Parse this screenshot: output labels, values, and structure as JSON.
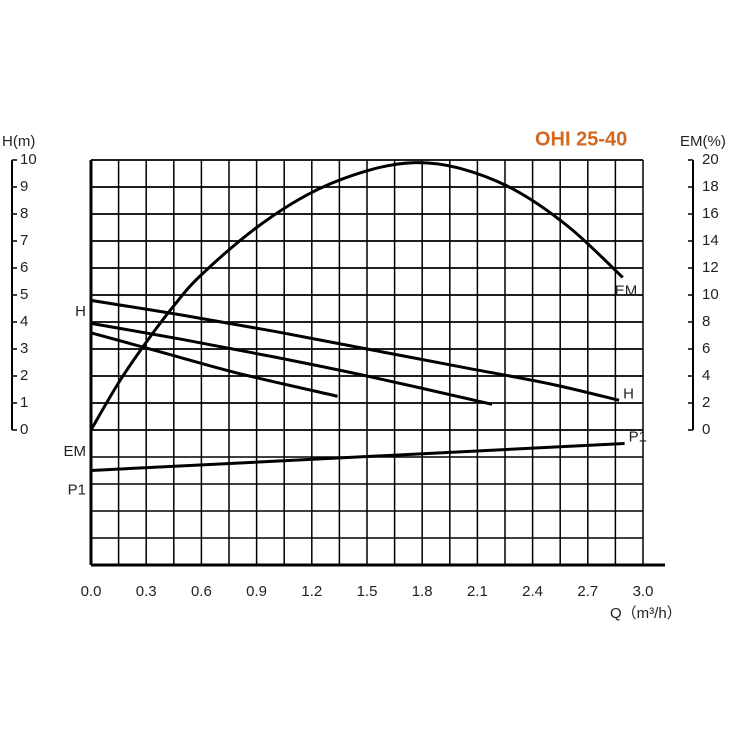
{
  "chart_data": {
    "type": "line",
    "title": "OHI 25-40",
    "y_label": "H(m)",
    "y2_label": "EM(%)",
    "x_label": "Q（m³/h）",
    "xlim": [
      0,
      3
    ],
    "xticks": [
      {
        "value": 0,
        "label": "0.0"
      },
      0.3,
      0.6,
      0.9,
      1.2,
      1.5,
      1.8,
      2.1,
      2.4,
      2.7,
      {
        "value": 3,
        "label": "3.0"
      }
    ],
    "ylim": [
      -5,
      10
    ],
    "yticks": [
      0,
      1,
      2,
      3,
      4,
      5,
      6,
      7,
      8,
      9,
      10
    ],
    "y2lim": [
      -10,
      20
    ],
    "y2ticks": [
      0,
      2,
      4,
      6,
      8,
      10,
      12,
      14,
      16,
      18,
      20
    ],
    "grid": true,
    "series": [
      {
        "name": "H",
        "color": "#000000",
        "x": [
          0,
          0.5,
          1.0,
          1.5,
          2.0,
          2.5,
          2.87
        ],
        "values": [
          4.8,
          4.25,
          3.65,
          3.0,
          2.35,
          1.7,
          1.1
        ]
      },
      {
        "name": "H",
        "color": "#000000",
        "x": [
          0,
          0.5,
          1.0,
          1.5,
          2.18
        ],
        "values": [
          3.95,
          3.35,
          2.7,
          2.0,
          0.95
        ]
      },
      {
        "name": "H",
        "color": "#000000",
        "x": [
          0,
          0.4,
          0.8,
          1.34
        ],
        "values": [
          3.6,
          2.85,
          2.1,
          1.25
        ]
      },
      {
        "name": "EM",
        "color": "#000000",
        "axis": "y2",
        "x": [
          0,
          0.15,
          0.3,
          0.45,
          0.6,
          0.9,
          1.2,
          1.5,
          1.75,
          2.0,
          2.3,
          2.6,
          2.89
        ],
        "values": [
          0,
          3.5,
          6.5,
          9.2,
          11.5,
          15,
          17.6,
          19.2,
          19.8,
          19.4,
          17.8,
          15,
          11.3
        ]
      },
      {
        "name": "P1",
        "color": "#000000",
        "x": [
          0,
          2.9
        ],
        "values": [
          -1.5,
          -0.5
        ]
      }
    ]
  }
}
